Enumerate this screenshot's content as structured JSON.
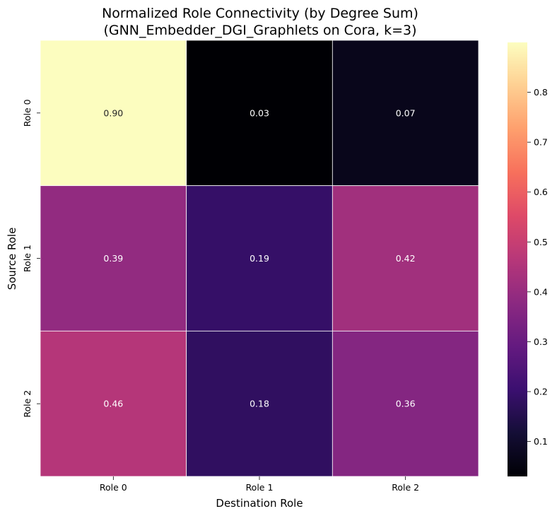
{
  "chart_data": {
    "type": "heatmap",
    "title_line1": "Normalized Role Connectivity (by Degree Sum)",
    "title_line2": "(GNN_Embedder_DGI_Graphlets on Cora, k=3)",
    "xlabel": "Destination Role",
    "ylabel": "Source Role",
    "x_categories": [
      "Role 0",
      "Role 1",
      "Role 2"
    ],
    "y_categories": [
      "Role 0",
      "Role 1",
      "Role 2"
    ],
    "values": [
      [
        0.9,
        0.03,
        0.07
      ],
      [
        0.39,
        0.19,
        0.42
      ],
      [
        0.46,
        0.18,
        0.36
      ]
    ],
    "value_labels": [
      [
        "0.90",
        "0.03",
        "0.07"
      ],
      [
        "0.39",
        "0.19",
        "0.42"
      ],
      [
        "0.46",
        "0.18",
        "0.36"
      ]
    ],
    "colormap": "magma",
    "colorbar_range": [
      0.03,
      0.9
    ],
    "colorbar_ticks": [
      0.1,
      0.2,
      0.3,
      0.4,
      0.5,
      0.6,
      0.7,
      0.8
    ],
    "colorbar_tick_labels": [
      "0.1",
      "0.2",
      "0.3",
      "0.4",
      "0.5",
      "0.6",
      "0.7",
      "0.8"
    ]
  }
}
